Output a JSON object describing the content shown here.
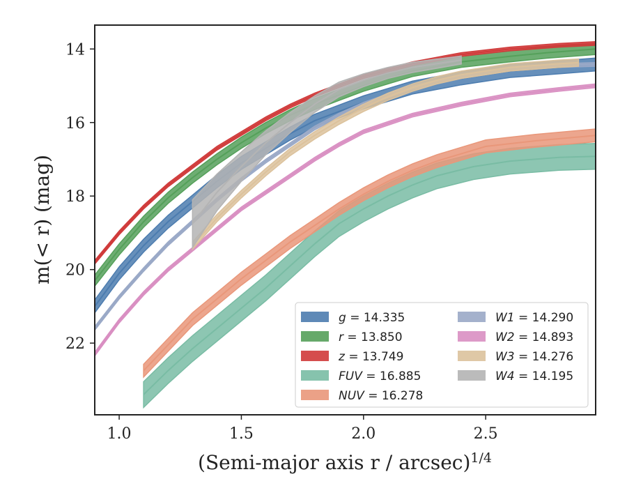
{
  "chart_data": {
    "type": "line",
    "xlabel": "(Semi-major axis r / arcsec)",
    "xlabel_superscript": "1/4",
    "ylabel": "m(< r) (mag)",
    "xlim": [
      0.9,
      2.95
    ],
    "ylim": [
      23.95,
      13.35
    ],
    "y_inverted": true,
    "x_ticks": [
      1.0,
      1.5,
      2.0,
      2.5
    ],
    "x_tick_labels": [
      "1.0",
      "1.5",
      "2.0",
      "2.5"
    ],
    "y_ticks": [
      14,
      16,
      18,
      20,
      22
    ],
    "y_tick_labels": [
      "14",
      "16",
      "18",
      "20",
      "22"
    ],
    "grid": false,
    "legend_placement": "lower-right",
    "series": [
      {
        "name": "g = 14.335",
        "label_band": "g",
        "label_value": "= 14.335",
        "color": "#4c7caf",
        "x": [
          0.9,
          1.0,
          1.1,
          1.2,
          1.3,
          1.4,
          1.5,
          1.6,
          1.7,
          1.8,
          1.9,
          2.0,
          2.2,
          2.4,
          2.6,
          2.8,
          2.95
        ],
        "y": [
          21.0,
          20.1,
          19.35,
          18.7,
          18.15,
          17.6,
          17.1,
          16.7,
          16.3,
          15.95,
          15.7,
          15.45,
          15.05,
          14.8,
          14.6,
          14.5,
          14.42
        ],
        "band": 0.35
      },
      {
        "name": "r = 13.850",
        "label_band": "r",
        "label_value": "= 13.850",
        "color": "#55a05a",
        "x": [
          0.9,
          1.0,
          1.1,
          1.2,
          1.3,
          1.4,
          1.5,
          1.6,
          1.7,
          1.8,
          1.9,
          2.0,
          2.2,
          2.4,
          2.6,
          2.75,
          2.95
        ],
        "y": [
          20.3,
          19.45,
          18.7,
          18.05,
          17.5,
          17.0,
          16.55,
          16.15,
          15.8,
          15.5,
          15.25,
          15.0,
          14.6,
          14.35,
          14.2,
          14.1,
          14.0
        ],
        "band": 0.3
      },
      {
        "name": "z = 13.749",
        "label_band": "z",
        "label_value": "= 13.749",
        "color": "#d03a3a",
        "x": [
          0.9,
          1.0,
          1.1,
          1.2,
          1.3,
          1.4,
          1.5,
          1.6,
          1.7,
          1.8,
          1.9,
          2.0,
          2.2,
          2.4,
          2.6,
          2.8,
          2.95
        ],
        "y": [
          19.8,
          19.0,
          18.3,
          17.7,
          17.2,
          16.7,
          16.3,
          15.9,
          15.55,
          15.25,
          15.0,
          14.75,
          14.4,
          14.15,
          14.0,
          13.9,
          13.85
        ],
        "band": 0.1
      },
      {
        "name": "FUV = 16.885",
        "label_band": "FUV",
        "label_value": "= 16.885",
        "color": "#79bca4",
        "x": [
          1.1,
          1.2,
          1.3,
          1.4,
          1.5,
          1.6,
          1.7,
          1.8,
          1.9,
          2.0,
          2.1,
          2.2,
          2.3,
          2.45,
          2.6,
          2.8,
          2.95
        ],
        "y": [
          23.4,
          22.75,
          22.15,
          21.6,
          21.05,
          20.5,
          19.9,
          19.3,
          18.75,
          18.35,
          18.0,
          17.7,
          17.45,
          17.2,
          17.05,
          16.95,
          16.92
        ],
        "band": 0.7
      },
      {
        "name": "NUV = 16.278",
        "label_band": "NUV",
        "label_value": "= 16.278",
        "color": "#e9977a",
        "x": [
          1.1,
          1.2,
          1.3,
          1.4,
          1.5,
          1.6,
          1.7,
          1.8,
          1.9,
          2.0,
          2.1,
          2.2,
          2.3,
          2.4,
          2.5,
          2.7,
          2.95
        ],
        "y": [
          22.75,
          22.05,
          21.35,
          20.8,
          20.25,
          19.75,
          19.25,
          18.8,
          18.35,
          17.95,
          17.6,
          17.3,
          17.05,
          16.85,
          16.65,
          16.5,
          16.35
        ],
        "band": 0.35
      },
      {
        "name": "W1 = 14.290",
        "label_band": "W1",
        "label_value": "= 14.290",
        "color": "#9aa9c7",
        "x": [
          0.9,
          1.0,
          1.1,
          1.2,
          1.3,
          1.4,
          1.5,
          1.6,
          1.7,
          1.8,
          1.9,
          2.0,
          2.2,
          2.4,
          2.6,
          2.8,
          2.95
        ],
        "y": [
          21.6,
          20.75,
          20.0,
          19.3,
          18.7,
          18.1,
          17.55,
          17.05,
          16.6,
          16.15,
          15.8,
          15.5,
          15.05,
          14.75,
          14.55,
          14.45,
          14.42
        ],
        "band": 0.1
      },
      {
        "name": "W2 = 14.893",
        "label_band": "W2",
        "label_value": "= 14.893",
        "color": "#d98fc2",
        "x": [
          0.9,
          1.0,
          1.1,
          1.2,
          1.3,
          1.4,
          1.5,
          1.6,
          1.7,
          1.8,
          1.9,
          2.0,
          2.2,
          2.4,
          2.6,
          2.8,
          2.95
        ],
        "y": [
          22.3,
          21.4,
          20.65,
          20.0,
          19.45,
          18.9,
          18.35,
          17.9,
          17.45,
          17.0,
          16.6,
          16.25,
          15.8,
          15.5,
          15.25,
          15.1,
          15.0
        ],
        "band": 0.1
      },
      {
        "name": "W3 = 14.276",
        "label_band": "W3",
        "label_value": "= 14.276",
        "color": "#dcc29c",
        "x": [
          1.3,
          1.4,
          1.5,
          1.6,
          1.7,
          1.8,
          1.9,
          2.0,
          2.1,
          2.2,
          2.3,
          2.4,
          2.5,
          2.6,
          2.7,
          2.8,
          2.88
        ],
        "y": [
          19.35,
          18.6,
          17.95,
          17.35,
          16.8,
          16.35,
          15.95,
          15.6,
          15.3,
          15.05,
          14.85,
          14.7,
          14.6,
          14.5,
          14.45,
          14.4,
          14.37
        ],
        "band": 0.2
      },
      {
        "name": "W4 = 14.195",
        "label_band": "W4",
        "label_value": "= 14.195",
        "color": "#b4b4b4",
        "x": [
          1.3,
          1.4,
          1.5,
          1.6,
          1.7,
          1.8,
          1.9,
          2.0,
          2.1,
          2.2,
          2.3,
          2.4
        ],
        "y": [
          18.75,
          17.9,
          17.2,
          16.55,
          16.0,
          15.5,
          15.1,
          14.85,
          14.65,
          14.5,
          14.4,
          14.3
        ],
        "band": [
          1.3,
          1.0,
          0.8,
          0.65,
          0.55,
          0.45,
          0.4,
          0.35,
          0.3,
          0.28,
          0.25,
          0.22
        ]
      }
    ]
  }
}
